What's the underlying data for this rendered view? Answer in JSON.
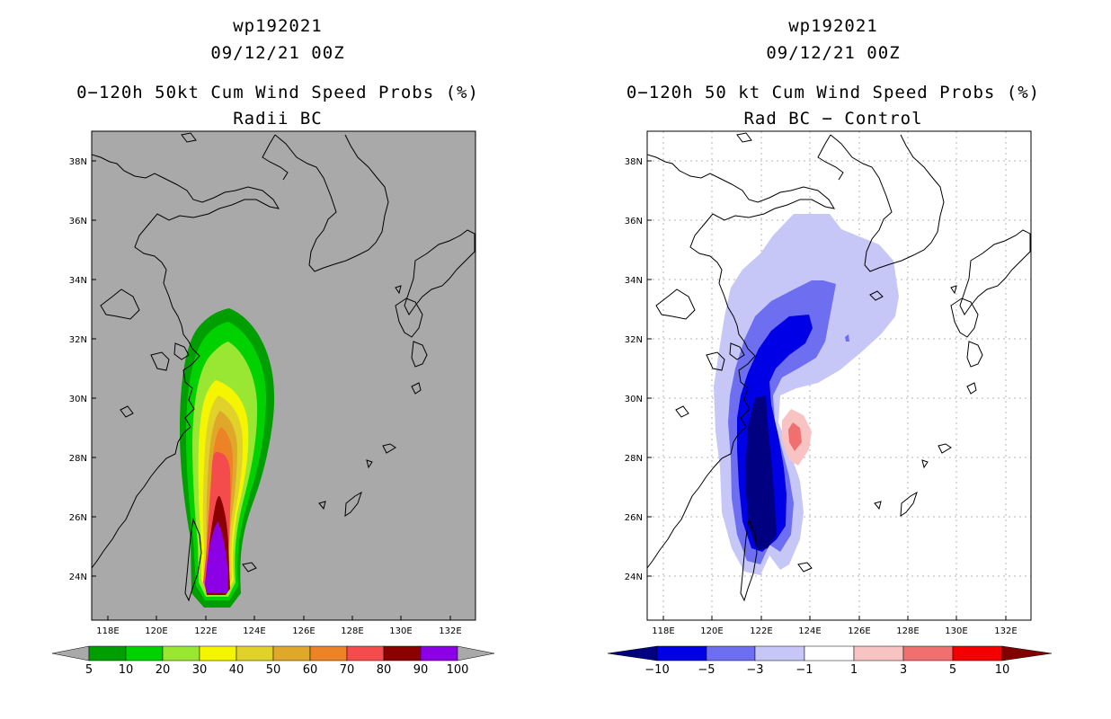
{
  "left_panel": {
    "storm_id": "wp192021",
    "datetime": "09/12/21 00Z",
    "product": "0−120h 50kt Cum Wind Speed Probs (%)",
    "subtitle": "Radii BC",
    "lat_labels": [
      "38N",
      "36N",
      "34N",
      "32N",
      "30N",
      "28N",
      "26N",
      "24N"
    ],
    "lon_labels": [
      "118E",
      "120E",
      "122E",
      "124E",
      "126E",
      "128E",
      "130E",
      "132E"
    ],
    "colorbar": {
      "labels": [
        "5",
        "10",
        "20",
        "30",
        "40",
        "50",
        "60",
        "70",
        "80",
        "90",
        "100"
      ],
      "colors": [
        "#009e00",
        "#00d200",
        "#99e633",
        "#f5f500",
        "#e0d22b",
        "#e0a82b",
        "#ec8326",
        "#f44c4c",
        "#8b0000",
        "#8c00e6"
      ],
      "end_color": "#a9a9a9"
    },
    "background": "#a9a9a9"
  },
  "right_panel": {
    "storm_id": "wp192021",
    "datetime": "09/12/21 00Z",
    "product": "0−120h 50 kt Cum Wind Speed Probs (%)",
    "subtitle": "Rad BC − Control",
    "lat_labels": [
      "38N",
      "36N",
      "34N",
      "32N",
      "30N",
      "28N",
      "26N",
      "24N"
    ],
    "lon_labels": [
      "118E",
      "120E",
      "122E",
      "124E",
      "126E",
      "128E",
      "130E",
      "132E"
    ],
    "colorbar": {
      "labels": [
        "−10",
        "−5",
        "−3",
        "−1",
        "1",
        "3",
        "5",
        "10"
      ],
      "colors": [
        "#0000e6",
        "#6e6ef0",
        "#c6c6f7",
        "#ffffff",
        "#f7c3c3",
        "#f07070",
        "#f50000"
      ],
      "start_color": "#000080",
      "end_color": "#800000"
    },
    "background": "#ffffff"
  }
}
